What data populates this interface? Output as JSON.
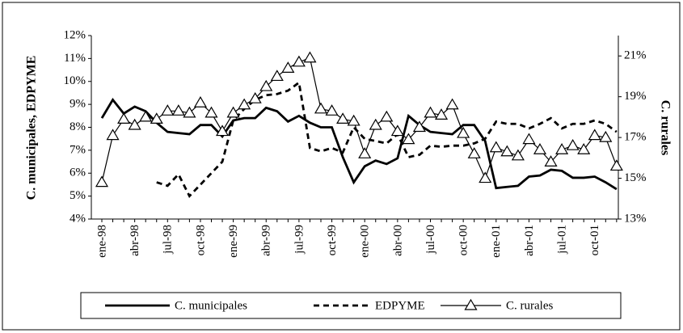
{
  "chart_data": {
    "type": "line",
    "y_label": "C. municipales, EDPYME",
    "y2_label": "C. rurales",
    "categories": [
      "ene-98",
      null,
      null,
      "abr-98",
      null,
      null,
      "jul-98",
      null,
      null,
      "oct-98",
      null,
      null,
      "ene-99",
      null,
      null,
      "abr-99",
      null,
      null,
      "jul-99",
      null,
      null,
      "oct-99",
      null,
      null,
      "ene-00",
      null,
      null,
      "abr-00",
      null,
      null,
      "jul-00",
      null,
      null,
      "oct-00",
      null,
      null,
      "ene-01",
      null,
      null,
      "abr-01",
      null,
      null,
      "jul-01",
      null,
      null,
      "oct-01",
      null,
      null
    ],
    "ylim": [
      4,
      12
    ],
    "yticks": [
      {
        "value": 4,
        "label": "4%"
      },
      {
        "value": 5,
        "label": "5%"
      },
      {
        "value": 6,
        "label": "6%"
      },
      {
        "value": 7,
        "label": "7%"
      },
      {
        "value": 8,
        "label": "8%"
      },
      {
        "value": 9,
        "label": "9%"
      },
      {
        "value": 10,
        "label": "10%"
      },
      {
        "value": 11,
        "label": "11%"
      },
      {
        "value": 12,
        "label": "12%"
      }
    ],
    "y2lim": [
      13,
      22
    ],
    "y2ticks": [
      {
        "value": 13,
        "label": "13%"
      },
      {
        "value": 15,
        "label": "15%"
      },
      {
        "value": 17,
        "label": "17%"
      },
      {
        "value": 19,
        "label": "19%"
      },
      {
        "value": 21,
        "label": "21%"
      }
    ],
    "series": [
      {
        "name": "C. municipales",
        "color": "#000000",
        "style": "solid-thick",
        "values": [
          8.4,
          9.2,
          8.6,
          8.9,
          8.7,
          8.2,
          7.8,
          7.75,
          7.7,
          8.1,
          8.1,
          7.6,
          8.3,
          8.4,
          8.4,
          8.85,
          8.7,
          8.25,
          8.5,
          8.2,
          8.0,
          8.0,
          6.7,
          5.6,
          6.3,
          6.55,
          6.4,
          6.65,
          8.5,
          8.1,
          7.8,
          7.75,
          7.7,
          8.1,
          8.1,
          7.4,
          5.35,
          5.4,
          5.45,
          5.85,
          5.9,
          6.15,
          6.1,
          5.8,
          5.8,
          5.85,
          5.6,
          5.3
        ]
      },
      {
        "name": "EDPYME",
        "color": "#000000",
        "style": "dashed",
        "values": [
          null,
          null,
          null,
          null,
          null,
          5.6,
          5.45,
          5.95,
          5.0,
          5.5,
          6.0,
          6.5,
          8.3,
          8.8,
          9.2,
          9.4,
          9.45,
          9.6,
          9.95,
          7.1,
          6.95,
          7.1,
          6.9,
          8.0,
          7.5,
          7.4,
          7.3,
          7.7,
          6.7,
          6.8,
          7.2,
          7.15,
          7.2,
          7.2,
          7.3,
          7.5,
          8.25,
          8.15,
          8.15,
          7.95,
          8.15,
          8.4,
          7.95,
          8.15,
          8.15,
          8.3,
          8.15,
          7.8
        ]
      },
      {
        "name": "C. rurales",
        "color": "#000000",
        "style": "thin-triangles",
        "axis": "y2",
        "values": [
          14.8,
          17.1,
          17.9,
          17.6,
          18.0,
          17.9,
          18.3,
          18.3,
          18.2,
          18.7,
          18.2,
          17.3,
          18.2,
          18.6,
          18.9,
          19.5,
          20.0,
          20.4,
          20.7,
          20.9,
          18.4,
          18.3,
          17.9,
          17.8,
          16.2,
          17.6,
          18.0,
          17.3,
          16.9,
          17.5,
          18.2,
          18.1,
          18.6,
          17.2,
          16.2,
          15.0,
          16.5,
          16.3,
          16.1,
          16.9,
          16.4,
          15.8,
          16.4,
          16.6,
          16.4,
          17.1,
          17.0,
          15.6
        ]
      }
    ]
  }
}
